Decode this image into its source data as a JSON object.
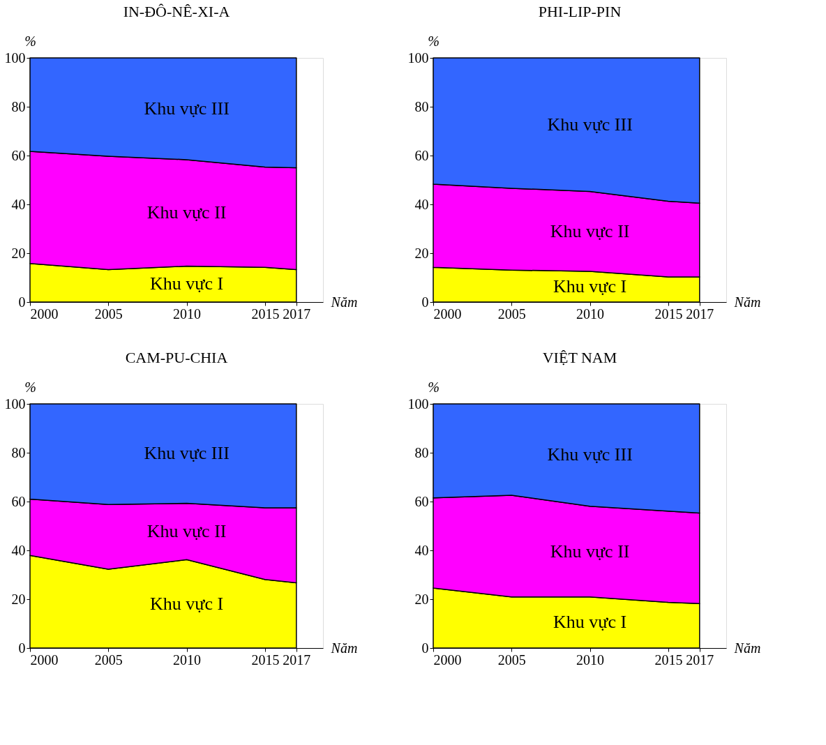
{
  "chart_data": [
    {
      "type": "area",
      "stacked": true,
      "title": "IN-ĐÔ-NÊ-XI-A",
      "xlabel": "Năm",
      "ylabel": "%",
      "x": [
        2000,
        2005,
        2010,
        2015,
        2017
      ],
      "xlim": [
        2000,
        2018.7
      ],
      "xticks": [
        2000,
        2005,
        2010,
        2015,
        2017
      ],
      "ylim": [
        0,
        100
      ],
      "yticks": [
        0,
        20,
        40,
        60,
        80,
        100
      ],
      "grid": false,
      "series": [
        {
          "name": "Khu vực I",
          "color": "#ffff00",
          "values": [
            15.8,
            13.3,
            14.7,
            14.2,
            13.3
          ]
        },
        {
          "name": "Khu vực II",
          "color": "#ff00ff",
          "values": [
            45.9,
            46.4,
            43.6,
            41.1,
            41.7
          ]
        },
        {
          "name": "Khu vực III",
          "color": "#3366ff",
          "values": [
            38.3,
            40.3,
            41.7,
            44.7,
            45.0
          ]
        }
      ]
    },
    {
      "type": "area",
      "stacked": true,
      "title": "PHI-LIP-PIN",
      "xlabel": "Năm",
      "ylabel": "%",
      "x": [
        2000,
        2005,
        2010,
        2015,
        2017
      ],
      "xlim": [
        2000,
        2018.7
      ],
      "xticks": [
        2000,
        2005,
        2010,
        2015,
        2017
      ],
      "ylim": [
        0,
        100
      ],
      "yticks": [
        0,
        20,
        40,
        60,
        80,
        100
      ],
      "grid": false,
      "series": [
        {
          "name": "Khu vực I",
          "color": "#ffff00",
          "values": [
            14.2,
            13.1,
            12.6,
            10.3,
            10.3
          ]
        },
        {
          "name": "Khu vực II",
          "color": "#ff00ff",
          "values": [
            34.1,
            33.5,
            32.7,
            31.0,
            30.2
          ]
        },
        {
          "name": "Khu vực III",
          "color": "#3366ff",
          "values": [
            51.7,
            53.4,
            54.7,
            58.7,
            59.5
          ]
        }
      ]
    },
    {
      "type": "area",
      "stacked": true,
      "title": "CAM-PU-CHIA",
      "xlabel": "Năm",
      "ylabel": "%",
      "x": [
        2000,
        2005,
        2010,
        2015,
        2017
      ],
      "xlim": [
        2000,
        2018.7
      ],
      "xticks": [
        2000,
        2005,
        2010,
        2015,
        2017
      ],
      "ylim": [
        0,
        100
      ],
      "yticks": [
        0,
        20,
        40,
        60,
        80,
        100
      ],
      "grid": false,
      "series": [
        {
          "name": "Khu vực I",
          "color": "#ffff00",
          "values": [
            37.9,
            32.3,
            36.2,
            28.1,
            26.7
          ]
        },
        {
          "name": "Khu vực II",
          "color": "#ff00ff",
          "values": [
            23.1,
            26.5,
            23.1,
            29.3,
            30.7
          ]
        },
        {
          "name": "Khu vực III",
          "color": "#3366ff",
          "values": [
            39.0,
            41.2,
            40.7,
            42.6,
            42.6
          ]
        }
      ]
    },
    {
      "type": "area",
      "stacked": true,
      "title": "VIỆT NAM",
      "xlabel": "Năm",
      "ylabel": "%",
      "x": [
        2000,
        2005,
        2010,
        2015,
        2017
      ],
      "xlim": [
        2000,
        2018.7
      ],
      "xticks": [
        2000,
        2005,
        2010,
        2015,
        2017
      ],
      "ylim": [
        0,
        100
      ],
      "yticks": [
        0,
        20,
        40,
        60,
        80,
        100
      ],
      "grid": false,
      "series": [
        {
          "name": "Khu vực I",
          "color": "#ffff00",
          "values": [
            24.6,
            20.9,
            20.9,
            18.7,
            18.2
          ]
        },
        {
          "name": "Khu vực II",
          "color": "#ff00ff",
          "values": [
            36.9,
            41.7,
            37.2,
            37.4,
            37.1
          ]
        },
        {
          "name": "Khu vực III",
          "color": "#3366ff",
          "values": [
            38.5,
            37.4,
            41.9,
            43.9,
            44.7
          ]
        }
      ]
    }
  ]
}
